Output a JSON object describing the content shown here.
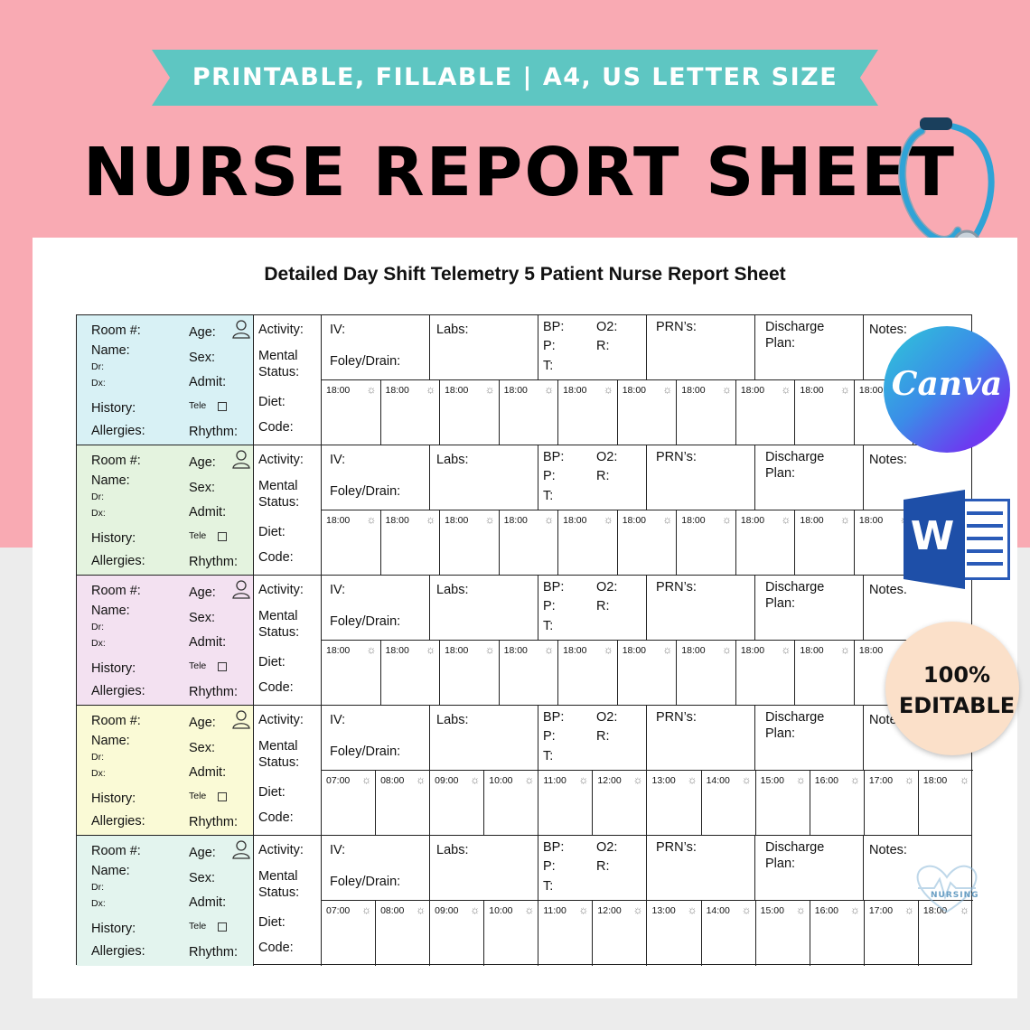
{
  "banner": {
    "ribbon_text": "PRINTABLE, FILLABLE  |  A4, US LETTER SIZE",
    "title": "NURSE REPORT SHEET"
  },
  "sheet": {
    "title": "Detailed Day Shift Telemetry 5 Patient Nurse Report Sheet",
    "patient_labels": {
      "room": "Room #:",
      "age": "Age:",
      "name": "Name:",
      "sex": "Sex:",
      "dr": "Dr:",
      "dx": "Dx:",
      "admit": "Admit:",
      "history": "History:",
      "tele": "Tele",
      "allergies": "Allergies:",
      "rhythm": "Rhythm:"
    },
    "col2_labels": {
      "activity": "Activity:",
      "mental": "Mental",
      "status": "Status:",
      "diet": "Diet:",
      "code": "Code:"
    },
    "cell_labels": {
      "iv": "IV:",
      "foley": "Foley/Drain:",
      "labs": "Labs:",
      "bp": "BP:",
      "o2": "O2:",
      "p": "P:",
      "r": "R:",
      "t": "T:",
      "prn": "PRN’s:",
      "discharge": "Discharge",
      "plan": "Plan:"
    },
    "notes_labels": [
      "Notes:",
      "Notes:",
      "Notes.",
      "Note",
      "Notes:"
    ],
    "patient_colors": [
      "#d8f1f5",
      "#e4f3df",
      "#f3e1f1",
      "#fafad6",
      "#e3f4ee"
    ],
    "time_rows": [
      [
        "18:00",
        "18:00",
        "18:00",
        "18:00",
        "18:00",
        "18:00",
        "18:00",
        "18:00",
        "18:00",
        "18:00",
        "18:"
      ],
      [
        "18:00",
        "18:00",
        "18:00",
        "18:00",
        "18:00",
        "18:00",
        "18:00",
        "18:00",
        "18:00",
        "18:00",
        "18:00"
      ],
      [
        "18:00",
        "18:00",
        "18:00",
        "18:00",
        "18:00",
        "18:00",
        "18:00",
        "18:00",
        "18:00",
        "18:00",
        "18:00"
      ],
      [
        "07:00",
        "08:00",
        "09:00",
        "10:00",
        "11:00",
        "12:00",
        "13:00",
        "14:00",
        "15:00",
        "16:00",
        "17:00",
        "18:00"
      ],
      [
        "07:00",
        "08:00",
        "09:00",
        "10:00",
        "11:00",
        "12:00",
        "13:00",
        "14:00",
        "15:00",
        "16:00",
        "17:00",
        "18:00"
      ]
    ]
  },
  "badges": {
    "canva": "Canva",
    "word": "W",
    "editable_line1": "100%",
    "editable_line2": "EDITABLE",
    "logo": "NURSING"
  },
  "icons": {
    "person": "person-icon",
    "sun": "sun-icon",
    "stethoscope": "stethoscope-icon",
    "checkbox": "checkbox-icon"
  }
}
